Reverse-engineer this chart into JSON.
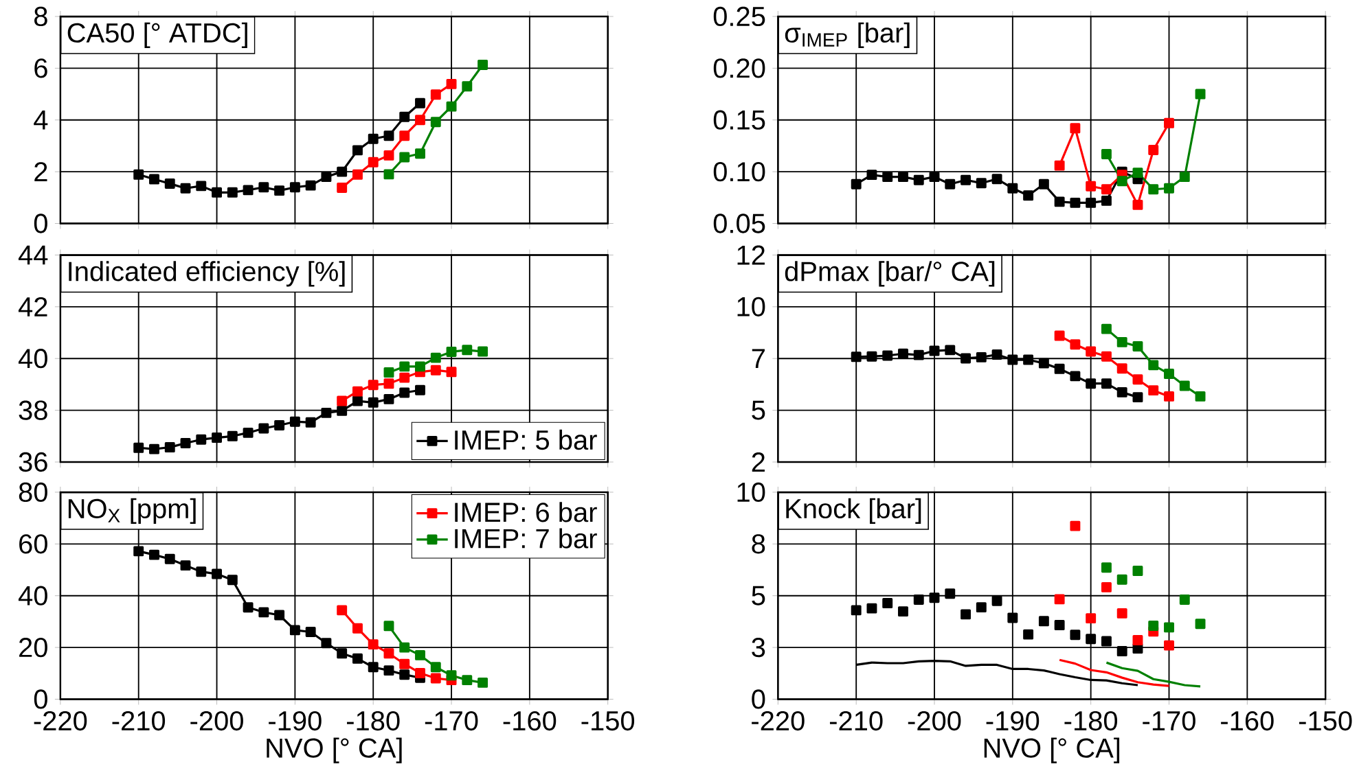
{
  "chart_data": [
    {
      "type": "line",
      "title": "CA50 [° ATDC]",
      "marker": "square",
      "grid": true,
      "tick_labels": "y",
      "xlim": [
        -220,
        -150
      ],
      "xticks": [
        -220,
        -210,
        -200,
        -190,
        -180,
        -170,
        -160,
        -150
      ],
      "ylim": [
        0,
        8
      ],
      "yticks": [
        0,
        2,
        4,
        6,
        8
      ],
      "series": [
        {
          "color": "#000000",
          "x": [
            -210,
            -208,
            -206,
            -204,
            -202,
            -200,
            -198,
            -196,
            -194,
            -192,
            -190,
            -188,
            -186,
            -184,
            -182,
            -180,
            -178,
            -176,
            -174
          ],
          "values": [
            1.89,
            1.71,
            1.54,
            1.36,
            1.45,
            1.2,
            1.2,
            1.29,
            1.4,
            1.27,
            1.4,
            1.47,
            1.8,
            2.0,
            2.83,
            3.27,
            3.39,
            4.12,
            4.65
          ]
        },
        {
          "color": "#ff0000",
          "x": [
            -184,
            -182,
            -180,
            -178,
            -176,
            -174,
            -172,
            -170
          ],
          "values": [
            1.38,
            1.89,
            2.37,
            2.63,
            3.39,
            4.0,
            4.98,
            5.39
          ]
        },
        {
          "color": "#008000",
          "x": [
            -178,
            -176,
            -174,
            -172,
            -170,
            -168,
            -166
          ],
          "values": [
            1.9,
            2.56,
            2.7,
            3.92,
            4.52,
            5.3,
            6.13
          ]
        }
      ]
    },
    {
      "type": "line",
      "title": "σ$_{IMEP}$ [bar]",
      "marker": "square",
      "grid": true,
      "tick_labels": "y",
      "xlim": [
        -220,
        -150
      ],
      "xticks": [
        -220,
        -210,
        -200,
        -190,
        -180,
        -170,
        -160,
        -150
      ],
      "ylim": [
        0.05,
        0.25
      ],
      "yticks": [
        {
          "value": 0.05,
          "label": "0.05"
        },
        {
          "value": 0.1,
          "label": "0.10"
        },
        {
          "value": 0.15,
          "label": "0.15"
        },
        {
          "value": 0.2,
          "label": "0.20"
        },
        {
          "value": 0.25,
          "label": "0.25"
        }
      ],
      "series": [
        {
          "color": "#000000",
          "x": [
            -210,
            -208,
            -206,
            -204,
            -202,
            -200,
            -198,
            -196,
            -194,
            -192,
            -190,
            -188,
            -186,
            -184,
            -182,
            -180,
            -178,
            -176,
            -174
          ],
          "values": [
            0.088,
            0.097,
            0.095,
            0.095,
            0.092,
            0.095,
            0.088,
            0.092,
            0.089,
            0.093,
            0.084,
            0.077,
            0.088,
            0.071,
            0.07,
            0.07,
            0.072,
            0.1,
            0.093
          ]
        },
        {
          "color": "#ff0000",
          "x": [
            -184,
            -182,
            -180,
            -178,
            -176,
            -174,
            -172,
            -170
          ],
          "values": [
            0.106,
            0.142,
            0.086,
            0.083,
            0.097,
            0.068,
            0.121,
            0.147
          ]
        },
        {
          "color": "#008000",
          "x": [
            -178,
            -176,
            -174,
            -172,
            -170,
            -168,
            -166
          ],
          "values": [
            0.117,
            0.091,
            0.099,
            0.083,
            0.084,
            0.095,
            0.175
          ]
        }
      ]
    },
    {
      "type": "line",
      "title": "Indicated efficiency [%]",
      "marker": "square",
      "grid": true,
      "tick_labels": "y",
      "legend": "bottom right",
      "xlim": [
        -220,
        -150
      ],
      "xticks": [
        -220,
        -210,
        -200,
        -190,
        -180,
        -170,
        -160,
        -150
      ],
      "ylim": [
        36,
        44
      ],
      "yticks": [
        36,
        38,
        40,
        42,
        44
      ],
      "series": [
        {
          "name": "IMEP: 5 bar",
          "color": "#000000",
          "x": [
            -210,
            -208,
            -206,
            -204,
            -202,
            -200,
            -198,
            -196,
            -194,
            -192,
            -190,
            -188,
            -186,
            -184,
            -182,
            -180,
            -178,
            -176,
            -174
          ],
          "values": [
            36.55,
            36.5,
            36.57,
            36.73,
            36.87,
            36.94,
            37.0,
            37.13,
            37.3,
            37.42,
            37.56,
            37.53,
            37.9,
            37.98,
            38.36,
            38.3,
            38.43,
            38.68,
            38.78
          ]
        },
        {
          "color": "#ff0000",
          "x": [
            -184,
            -182,
            -180,
            -178,
            -176,
            -174,
            -172,
            -170
          ],
          "values": [
            38.36,
            38.73,
            38.98,
            39.03,
            39.26,
            39.48,
            39.55,
            39.48
          ]
        },
        {
          "color": "#008000",
          "x": [
            -178,
            -176,
            -174,
            -172,
            -170,
            -168,
            -166
          ],
          "values": [
            39.46,
            39.69,
            39.69,
            40.03,
            40.26,
            40.33,
            40.27
          ]
        }
      ]
    },
    {
      "type": "line",
      "title": "dPmax [bar/° CA]",
      "marker": "square",
      "grid": true,
      "tick_labels": "y",
      "xlim": [
        -220,
        -150
      ],
      "xticks": [
        -220,
        -210,
        -200,
        -190,
        -180,
        -170,
        -160,
        -150
      ],
      "ylim": [
        2.5,
        12.5
      ],
      "yticks": [
        {
          "value": 2.5,
          "label": "2"
        },
        5,
        {
          "value": 7.5,
          "label": "7"
        },
        10,
        {
          "value": 12.5,
          "label": "12"
        }
      ],
      "series": [
        {
          "color": "#000000",
          "x": [
            -210,
            -208,
            -206,
            -204,
            -202,
            -200,
            -198,
            -196,
            -194,
            -192,
            -190,
            -188,
            -186,
            -184,
            -182,
            -180,
            -178,
            -176,
            -174
          ],
          "values": [
            7.58,
            7.6,
            7.64,
            7.73,
            7.67,
            7.87,
            7.91,
            7.51,
            7.56,
            7.69,
            7.44,
            7.44,
            7.27,
            7.0,
            6.65,
            6.29,
            6.29,
            5.87,
            5.63
          ]
        },
        {
          "color": "#ff0000",
          "x": [
            -184,
            -182,
            -180,
            -178,
            -176,
            -174,
            -172,
            -170
          ],
          "values": [
            8.6,
            8.18,
            7.84,
            7.6,
            7.02,
            6.49,
            5.96,
            5.67
          ]
        },
        {
          "color": "#008000",
          "x": [
            -178,
            -176,
            -174,
            -172,
            -170,
            -168,
            -166
          ],
          "values": [
            8.93,
            8.29,
            8.09,
            7.18,
            6.76,
            6.18,
            5.67
          ]
        }
      ]
    },
    {
      "type": "line",
      "title": "NO$_{X}$  [ppm]",
      "xlabel": "NVO [° CA]",
      "marker": "square",
      "grid": true,
      "legend": "top right",
      "xlim": [
        -220,
        -150
      ],
      "xticks": [
        -220,
        -210,
        -200,
        -190,
        -180,
        -170,
        -160,
        -150
      ],
      "ylim": [
        0,
        80
      ],
      "yticks": [
        0,
        20,
        40,
        60,
        80
      ],
      "series": [
        {
          "color": "#000000",
          "x": [
            -210,
            -208,
            -206,
            -204,
            -202,
            -200,
            -198,
            -196,
            -194,
            -192,
            -190,
            -188,
            -186,
            -184,
            -182,
            -180,
            -178,
            -176,
            -174
          ],
          "values": [
            57.2,
            55.8,
            54.2,
            51.7,
            49.3,
            48.4,
            46.1,
            35.5,
            33.6,
            32.5,
            26.7,
            26.0,
            21.7,
            17.7,
            15.7,
            12.4,
            11.1,
            9.5,
            8.3
          ]
        },
        {
          "name": "IMEP: 6 bar",
          "color": "#ff0000",
          "x": [
            -184,
            -182,
            -180,
            -178,
            -176,
            -174,
            -172,
            -170
          ],
          "values": [
            34.4,
            27.4,
            21.2,
            17.7,
            13.6,
            10.1,
            8.1,
            7.4
          ]
        },
        {
          "name": "IMEP: 7 bar",
          "color": "#008000",
          "x": [
            -178,
            -176,
            -174,
            -172,
            -170,
            -168,
            -166
          ],
          "values": [
            28.3,
            20.0,
            17.0,
            12.4,
            9.2,
            7.4,
            6.4
          ]
        }
      ]
    },
    {
      "type": "scatter",
      "title": "Knock [bar]",
      "xlabel": "NVO [° CA]",
      "marker": "square",
      "grid": true,
      "xlim": [
        -220,
        -150
      ],
      "xticks": [
        -220,
        -210,
        -200,
        -190,
        -180,
        -170,
        -160,
        -150
      ],
      "ylim": [
        0,
        10
      ],
      "yticks": [
        0,
        {
          "value": 2.5,
          "label": "3"
        },
        5,
        {
          "value": 7.5,
          "label": "8"
        },
        10
      ],
      "series": [
        {
          "color": "#000000",
          "x": [
            -210,
            -208,
            -206,
            -204,
            -202,
            -200,
            -198,
            -196,
            -194,
            -192,
            -190,
            -188,
            -186,
            -184,
            -182,
            -180,
            -178,
            -176,
            -174
          ],
          "values": [
            4.3,
            4.39,
            4.64,
            4.24,
            4.81,
            4.9,
            5.1,
            4.1,
            4.44,
            4.75,
            3.93,
            3.13,
            3.77,
            3.58,
            3.11,
            2.91,
            2.8,
            2.32,
            2.45
          ]
        },
        {
          "color": "#ff0000",
          "x": [
            -184,
            -182,
            -180,
            -178,
            -176,
            -174,
            -172,
            -170
          ],
          "values": [
            4.83,
            8.37,
            3.91,
            5.41,
            4.15,
            2.85,
            3.27,
            2.6
          ]
        },
        {
          "color": "#008000",
          "x": [
            -178,
            -176,
            -174,
            -172,
            -170,
            -168,
            -166
          ],
          "values": [
            6.36,
            5.78,
            6.2,
            3.55,
            3.47,
            4.81,
            3.64
          ]
        },
        {
          "type": "line",
          "marker": "none",
          "color": "#000000",
          "x": [
            -210,
            -208,
            -206,
            -204,
            -202,
            -200,
            -198,
            -196,
            -194,
            -192,
            -190,
            -188,
            -186,
            -184,
            -182,
            -180,
            -178,
            -176,
            -174
          ],
          "values": [
            1.66,
            1.77,
            1.74,
            1.74,
            1.83,
            1.85,
            1.83,
            1.61,
            1.66,
            1.66,
            1.46,
            1.46,
            1.39,
            1.21,
            1.06,
            0.93,
            0.91,
            0.77,
            0.68
          ]
        },
        {
          "type": "line",
          "marker": "none",
          "color": "#ff0000",
          "x": [
            -184,
            -182,
            -180,
            -178,
            -176,
            -174,
            -172,
            -170
          ],
          "values": [
            1.9,
            1.72,
            1.41,
            1.3,
            1.04,
            0.82,
            0.71,
            0.64
          ]
        },
        {
          "type": "line",
          "marker": "none",
          "color": "#008000",
          "x": [
            -178,
            -176,
            -174,
            -172,
            -170,
            -168,
            -166
          ],
          "values": [
            1.77,
            1.5,
            1.37,
            0.97,
            0.84,
            0.68,
            0.62
          ]
        }
      ]
    }
  ]
}
